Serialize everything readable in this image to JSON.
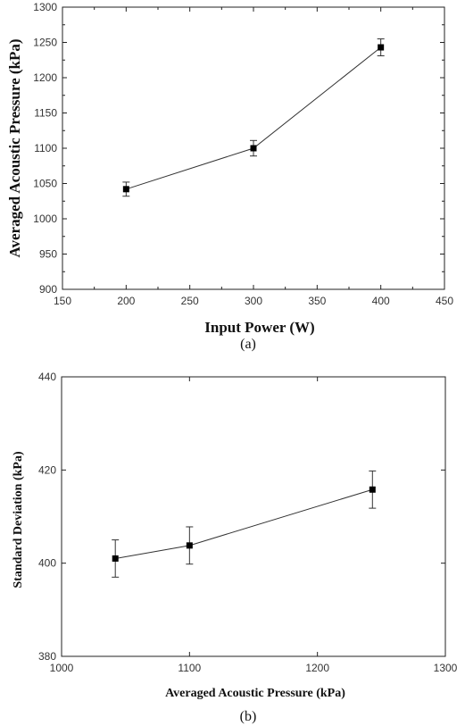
{
  "chart_data": [
    {
      "type": "line",
      "panel_label": "(a)",
      "xlabel": "Input Power (W)",
      "ylabel": "Averaged Acoustic Pressure (kPa)",
      "xlim": [
        150,
        450
      ],
      "ylim": [
        900,
        1300
      ],
      "xticks": [
        150,
        200,
        250,
        300,
        350,
        400,
        450
      ],
      "yticks": [
        900,
        950,
        1000,
        1050,
        1100,
        1150,
        1200,
        1250,
        1300
      ],
      "x": [
        200,
        300,
        400
      ],
      "series": [
        {
          "values": [
            1042,
            1100,
            1243
          ],
          "error": [
            10,
            11,
            12
          ],
          "marker": "square",
          "color": "#000000"
        }
      ],
      "grid": false,
      "minor_ticks": true
    },
    {
      "type": "line",
      "panel_label": "(b)",
      "xlabel": "Averaged Acoustic Pressure (kPa)",
      "ylabel": "Standard Deviation (kPa)",
      "xlim": [
        1000,
        1300
      ],
      "ylim": [
        380,
        440
      ],
      "xticks": [
        1000,
        1100,
        1200,
        1300
      ],
      "yticks": [
        380,
        400,
        420,
        440
      ],
      "x": [
        1042,
        1100,
        1243
      ],
      "series": [
        {
          "values": [
            401,
            403.8,
            415.8
          ],
          "error": [
            4,
            4,
            4
          ],
          "marker": "square",
          "color": "#000000"
        }
      ],
      "grid": false,
      "minor_ticks": false
    }
  ]
}
